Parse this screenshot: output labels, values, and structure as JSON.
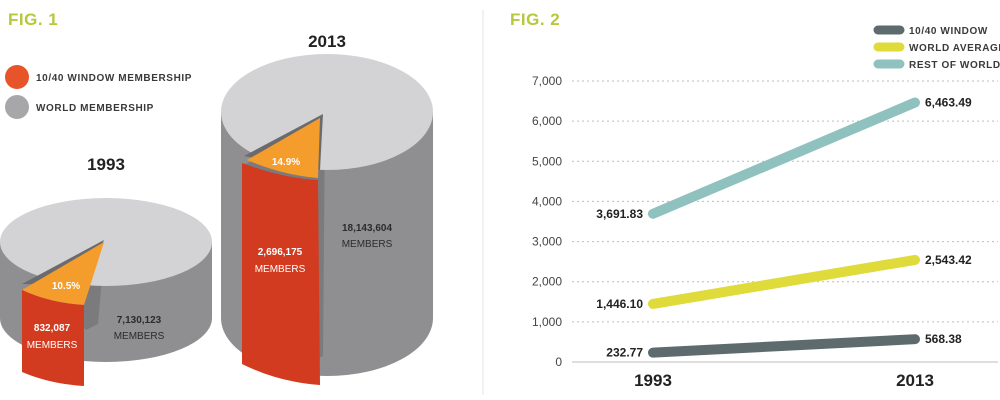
{
  "fig1": {
    "label": "FIG. 1",
    "legend": [
      {
        "label": "10/40 WINDOW MEMBERSHIP",
        "color": "#e8542a"
      },
      {
        "label": "WORLD MEMBERSHIP",
        "color": "#a7a7a9"
      }
    ],
    "pies": [
      {
        "year": "1993",
        "window_members": "832,087",
        "world_members": "7,130,123",
        "caption": "MEMBERS",
        "percent": "10.5%",
        "percent_value": 10.5
      },
      {
        "year": "2013",
        "window_members": "2,696,175",
        "world_members": "18,143,604",
        "caption": "MEMBERS",
        "percent": "14.9%",
        "percent_value": 14.9
      }
    ]
  },
  "fig2": {
    "label": "FIG. 2"
  },
  "chart_data": [
    {
      "type": "pie",
      "title": "",
      "series": [
        {
          "name": "1993",
          "values": [
            832087,
            7130123
          ],
          "labels": [
            "10/40 WINDOW MEMBERSHIP",
            "WORLD MEMBERSHIP"
          ],
          "percent_label": "10.5%"
        },
        {
          "name": "2013",
          "values": [
            2696175,
            18143604
          ],
          "labels": [
            "10/40 WINDOW MEMBERSHIP",
            "WORLD MEMBERSHIP"
          ],
          "percent_label": "14.9%"
        }
      ]
    },
    {
      "type": "line",
      "title": "",
      "x": [
        "1993",
        "2013"
      ],
      "ylim": [
        0,
        7000
      ],
      "yticks": [
        0,
        1000,
        2000,
        3000,
        4000,
        5000,
        6000,
        7000
      ],
      "ytick_labels": [
        "0",
        "1,000",
        "2,000",
        "3,000",
        "4,000",
        "5,000",
        "6,000",
        "7,000"
      ],
      "grid": "horizontal dashed",
      "legend_position": "top-right",
      "series": [
        {
          "name": "10/40 WINDOW",
          "color": "#5e6b6e",
          "values": [
            232.77,
            568.38
          ],
          "labels": [
            "232.77",
            "568.38"
          ]
        },
        {
          "name": "WORLD AVERAGE",
          "color": "#dedb3b",
          "values": [
            1446.1,
            2543.42
          ],
          "labels": [
            "1,446.10",
            "2,543.42"
          ]
        },
        {
          "name": "REST OF WORLD",
          "color": "#8fc1bf",
          "values": [
            3691.83,
            6463.49
          ],
          "labels": [
            "3,691.83",
            "6,463.49"
          ]
        }
      ]
    }
  ]
}
